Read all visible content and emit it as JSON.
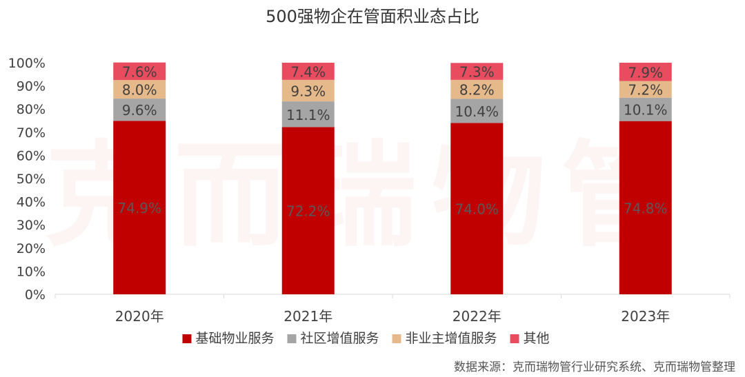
{
  "chart_data": {
    "type": "bar",
    "stacked": true,
    "title": "500强物企在管面积业态占比",
    "categories": [
      "2020年",
      "2021年",
      "2022年",
      "2023年"
    ],
    "series": [
      {
        "name": "基础物业服务",
        "color": "#C00000",
        "values": [
          74.9,
          72.2,
          74.0,
          74.8
        ],
        "labels": [
          "74.9%",
          "72.2%",
          "74.0%",
          "74.8%"
        ]
      },
      {
        "name": "社区增值服务",
        "color": "#A5A5A5",
        "values": [
          9.6,
          11.1,
          10.4,
          10.1
        ],
        "labels": [
          "9.6%",
          "11.1%",
          "10.4%",
          "10.1%"
        ]
      },
      {
        "name": "非业主增值服务",
        "color": "#E6B98A",
        "values": [
          8.0,
          9.3,
          8.2,
          7.2
        ],
        "labels": [
          "8.0%",
          "9.3%",
          "8.2%",
          "7.2%"
        ]
      },
      {
        "name": "其他",
        "color": "#E84C5E",
        "values": [
          7.6,
          7.4,
          7.3,
          7.9
        ],
        "labels": [
          "7.6%",
          "7.4%",
          "7.3%",
          "7.9%"
        ]
      }
    ],
    "yticks": [
      "0%",
      "10%",
      "20%",
      "30%",
      "40%",
      "50%",
      "60%",
      "70%",
      "80%",
      "90%",
      "100%"
    ],
    "ylim": [
      0,
      100
    ],
    "legend_position": "bottom"
  },
  "watermark": "克而瑞物管",
  "source": "数据来源：克而瑞物管行业研究系统、克而瑞物管整理"
}
